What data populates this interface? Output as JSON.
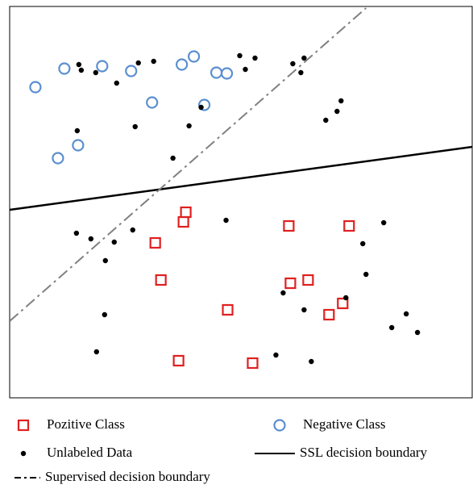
{
  "chart_data": {
    "type": "scatter",
    "xlim": [
      0,
      575
    ],
    "ylim": [
      485,
      0
    ],
    "series": [
      {
        "name": "Pozitive Class",
        "marker": "square",
        "color": "#e02020",
        "x": [
          219,
          216,
          181,
          347,
          422,
          188,
          349,
          371,
          271,
          414,
          397,
          210,
          302
        ],
        "values": [
          255,
          267,
          293,
          272,
          272,
          339,
          343,
          339,
          376,
          368,
          382,
          439,
          442
        ]
      },
      {
        "name": "Negative Class",
        "marker": "circle",
        "color": "#5b8fd0",
        "x": [
          32,
          68,
          115,
          151,
          214,
          229,
          257,
          270,
          177,
          242,
          85,
          60
        ],
        "values": [
          100,
          77,
          74,
          80,
          72,
          62,
          82,
          83,
          119,
          122,
          172,
          188
        ]
      },
      {
        "name": "Unlabeled Data",
        "marker": "dot",
        "color": "#000000",
        "x": [
          86,
          89,
          107,
          160,
          179,
          133,
          286,
          305,
          293,
          352,
          366,
          362,
          238,
          156,
          223,
          84,
          203,
          412,
          407,
          393,
          269,
          83,
          101,
          130,
          153,
          119,
          465,
          439,
          443,
          340,
          418,
          366,
          118,
          493,
          475,
          507,
          108,
          331,
          375
        ],
        "values": [
          72,
          79,
          82,
          70,
          68,
          95,
          61,
          64,
          78,
          71,
          64,
          82,
          125,
          149,
          148,
          154,
          188,
          117,
          130,
          141,
          265,
          281,
          288,
          292,
          277,
          315,
          268,
          294,
          332,
          355,
          361,
          376,
          382,
          381,
          398,
          404,
          428,
          432,
          440
        ]
      },
      {
        "name": "SSL decision boundary",
        "marker": "line",
        "dash": "solid",
        "color": "#000000",
        "x": [
          0,
          575
        ],
        "values": [
          252,
          174
        ]
      },
      {
        "name": "Supervised decision boundary",
        "marker": "line",
        "dash": "dashdot",
        "color": "#808080",
        "x": [
          0,
          443
        ],
        "values": [
          390,
          2
        ]
      }
    ]
  }
}
